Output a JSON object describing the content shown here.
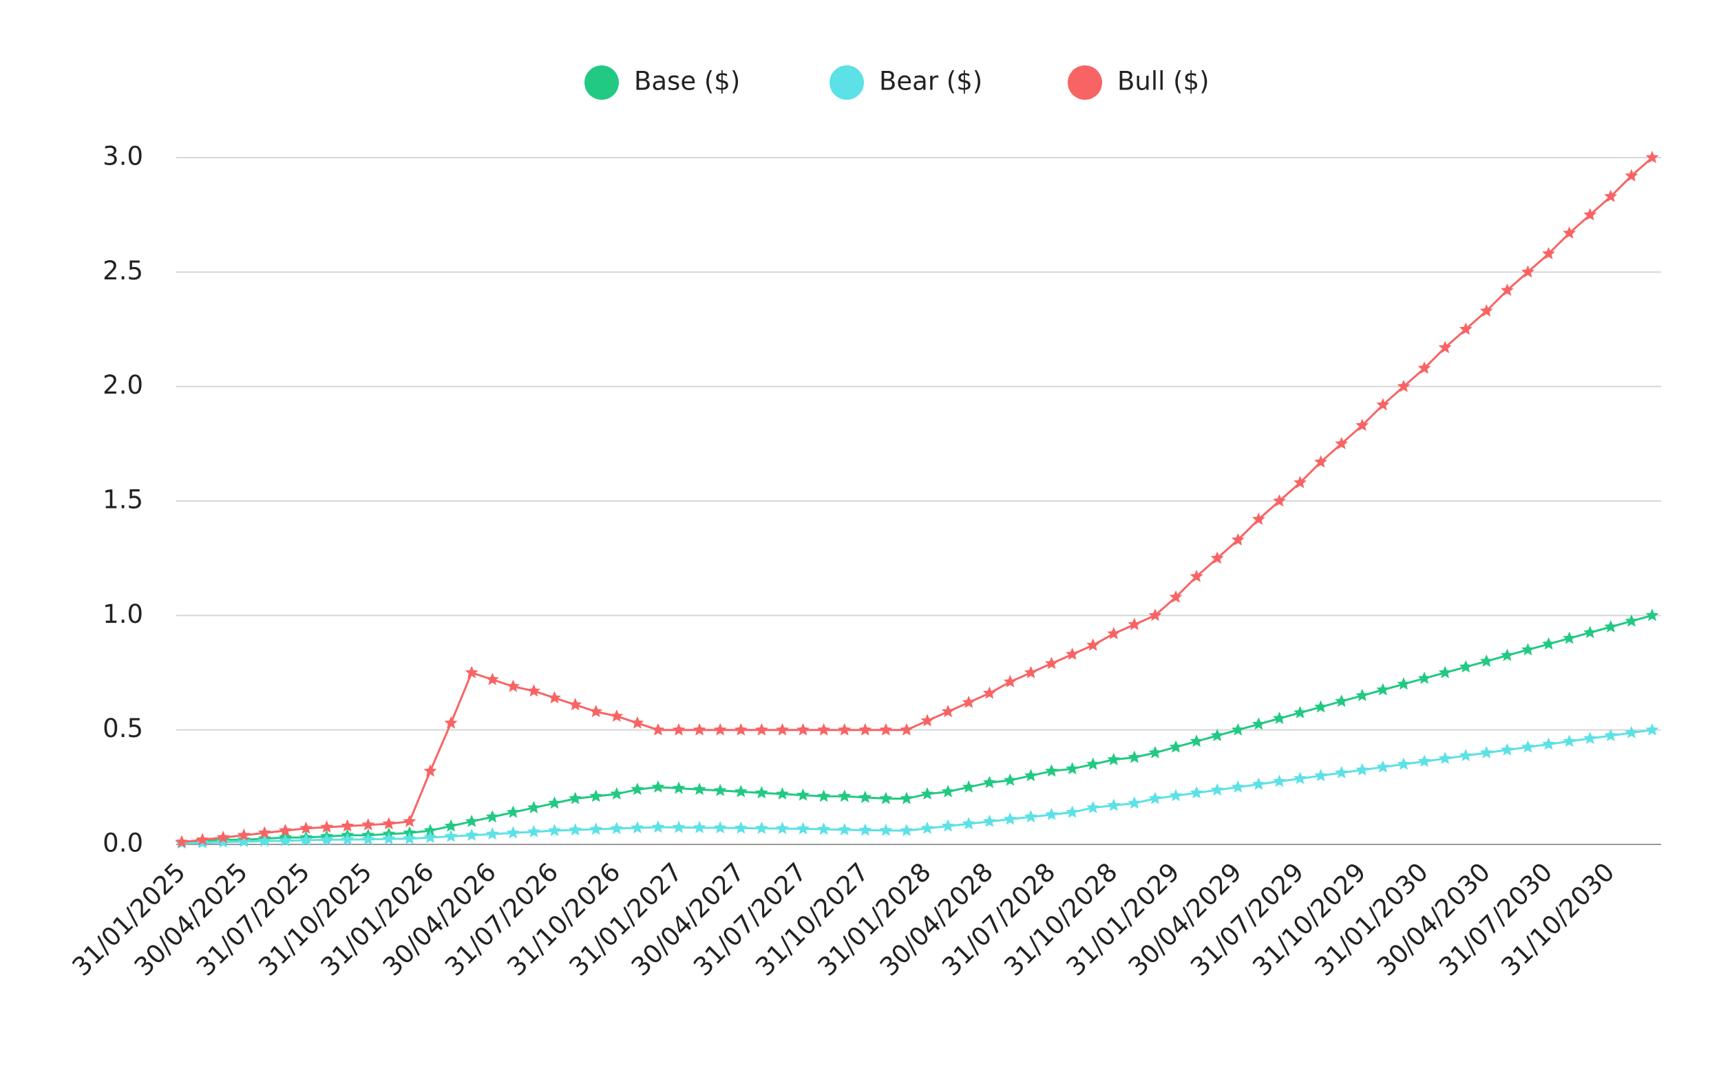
{
  "chart_data": {
    "type": "line",
    "categories": [
      "31/01/2025",
      null,
      null,
      "30/04/2025",
      null,
      null,
      "31/07/2025",
      null,
      null,
      "31/10/2025",
      null,
      null,
      "31/01/2026",
      null,
      null,
      "30/04/2026",
      null,
      null,
      "31/07/2026",
      null,
      null,
      "31/10/2026",
      null,
      null,
      "31/01/2027",
      null,
      null,
      "30/04/2027",
      null,
      null,
      "31/07/2027",
      null,
      null,
      "31/10/2027",
      null,
      null,
      "31/01/2028",
      null,
      null,
      "30/04/2028",
      null,
      null,
      "31/07/2028",
      null,
      null,
      "31/10/2028",
      null,
      null,
      "31/01/2029",
      null,
      null,
      "30/04/2029",
      null,
      null,
      "31/07/2029",
      null,
      null,
      "31/10/2029",
      null,
      null,
      "31/01/2030",
      null,
      null,
      "30/04/2030",
      null,
      null,
      "31/07/2030",
      null,
      null,
      "31/10/2030",
      null,
      null
    ],
    "series": [
      {
        "name": "Base ($)",
        "color": "#22c983",
        "values": [
          0.01,
          0.015,
          0.02,
          0.02,
          0.025,
          0.03,
          0.03,
          0.035,
          0.04,
          0.04,
          0.045,
          0.05,
          0.06,
          0.08,
          0.1,
          0.12,
          0.14,
          0.16,
          0.18,
          0.2,
          0.21,
          0.22,
          0.24,
          0.25,
          0.245,
          0.24,
          0.235,
          0.23,
          0.225,
          0.22,
          0.215,
          0.21,
          0.21,
          0.205,
          0.2,
          0.2,
          0.22,
          0.23,
          0.25,
          0.27,
          0.28,
          0.3,
          0.32,
          0.33,
          0.35,
          0.37,
          0.38,
          0.4,
          0.425,
          0.45,
          0.475,
          0.5,
          0.525,
          0.55,
          0.575,
          0.6,
          0.625,
          0.65,
          0.675,
          0.7,
          0.725,
          0.75,
          0.775,
          0.8,
          0.825,
          0.85,
          0.875,
          0.9,
          0.925,
          0.95,
          0.975,
          1.0
        ]
      },
      {
        "name": "Bear ($)",
        "color": "#5ce1e6",
        "values": [
          0.005,
          0.007,
          0.01,
          0.012,
          0.014,
          0.016,
          0.018,
          0.02,
          0.021,
          0.022,
          0.024,
          0.025,
          0.03,
          0.035,
          0.04,
          0.045,
          0.05,
          0.055,
          0.06,
          0.063,
          0.066,
          0.069,
          0.072,
          0.075,
          0.074,
          0.073,
          0.072,
          0.071,
          0.07,
          0.069,
          0.068,
          0.066,
          0.064,
          0.062,
          0.061,
          0.06,
          0.07,
          0.08,
          0.09,
          0.1,
          0.11,
          0.12,
          0.13,
          0.14,
          0.16,
          0.17,
          0.18,
          0.2,
          0.2125,
          0.225,
          0.2375,
          0.25,
          0.2625,
          0.275,
          0.2875,
          0.3,
          0.3125,
          0.325,
          0.3375,
          0.35,
          0.3625,
          0.375,
          0.3875,
          0.4,
          0.4125,
          0.425,
          0.4375,
          0.45,
          0.4625,
          0.475,
          0.4875,
          0.5
        ]
      },
      {
        "name": "Bull ($)",
        "color": "#f86464",
        "values": [
          0.01,
          0.02,
          0.03,
          0.04,
          0.05,
          0.06,
          0.07,
          0.075,
          0.08,
          0.085,
          0.09,
          0.1,
          0.32,
          0.53,
          0.75,
          0.72,
          0.69,
          0.67,
          0.64,
          0.61,
          0.58,
          0.56,
          0.53,
          0.5,
          0.5,
          0.5,
          0.5,
          0.5,
          0.5,
          0.5,
          0.5,
          0.5,
          0.5,
          0.5,
          0.5,
          0.5,
          0.54,
          0.58,
          0.62,
          0.66,
          0.71,
          0.75,
          0.79,
          0.83,
          0.87,
          0.92,
          0.96,
          1.0,
          1.08,
          1.17,
          1.25,
          1.33,
          1.42,
          1.5,
          1.58,
          1.67,
          1.75,
          1.83,
          1.92,
          2.0,
          2.08,
          2.17,
          2.25,
          2.33,
          2.42,
          2.5,
          2.58,
          2.67,
          2.75,
          2.83,
          2.92,
          3.0
        ]
      }
    ],
    "ylim": [
      0,
      3.0
    ],
    "yticks": [
      {
        "value": 0,
        "label": "0.0"
      },
      0.5,
      {
        "value": 1,
        "label": "1.0"
      },
      1.5,
      {
        "value": 2,
        "label": "2.0"
      },
      2.5,
      {
        "value": 3,
        "label": "3.0"
      }
    ],
    "grid": true,
    "legend": "top"
  }
}
